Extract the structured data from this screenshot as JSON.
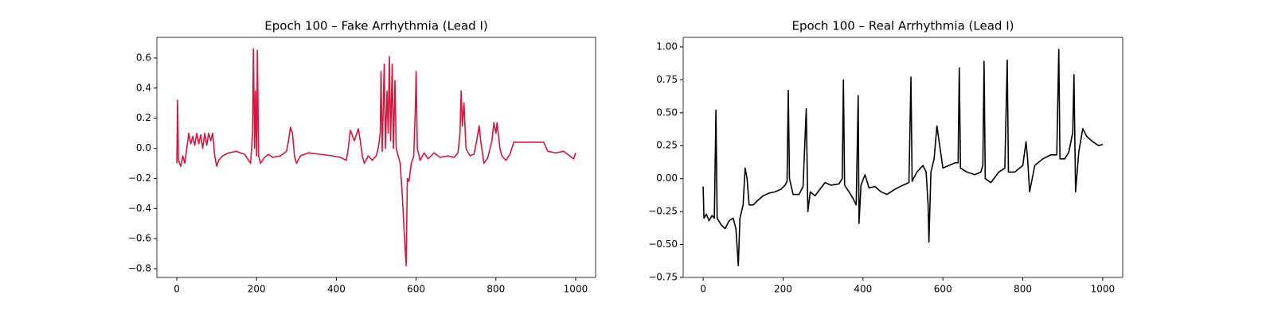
{
  "chart_data": [
    {
      "type": "line",
      "title": "Epoch 100 – Fake Arrhythmia (Lead I)",
      "color": "#dc143c",
      "x": [
        0,
        2,
        4,
        10,
        15,
        20,
        25,
        30,
        35,
        40,
        45,
        50,
        55,
        60,
        65,
        70,
        75,
        80,
        85,
        90,
        95,
        100,
        105,
        115,
        130,
        150,
        170,
        180,
        185,
        190,
        192,
        195,
        197,
        200,
        202,
        205,
        210,
        220,
        230,
        240,
        260,
        275,
        280,
        285,
        290,
        295,
        300,
        310,
        330,
        360,
        390,
        410,
        425,
        430,
        435,
        445,
        455,
        460,
        465,
        470,
        480,
        490,
        500,
        505,
        510,
        512,
        515,
        520,
        523,
        527,
        530,
        533,
        536,
        540,
        543,
        547,
        550,
        555,
        560,
        565,
        570,
        575,
        578,
        582,
        588,
        594,
        598,
        600,
        603,
        610,
        620,
        630,
        645,
        660,
        680,
        695,
        705,
        710,
        713,
        716,
        720,
        725,
        735,
        745,
        752,
        758,
        762,
        770,
        780,
        790,
        795,
        800,
        803,
        810,
        815,
        825,
        835,
        845,
        870,
        900,
        920,
        930,
        950,
        970,
        985,
        995,
        1000
      ],
      "values": [
        -0.1,
        0.32,
        -0.08,
        -0.12,
        -0.05,
        -0.1,
        0.0,
        0.1,
        0.03,
        0.08,
        0.02,
        0.1,
        0.03,
        0.09,
        0.0,
        0.1,
        0.02,
        0.1,
        0.05,
        0.1,
        -0.05,
        -0.12,
        -0.08,
        -0.05,
        -0.03,
        -0.02,
        -0.04,
        -0.08,
        -0.1,
        0.1,
        0.66,
        0.0,
        0.38,
        -0.05,
        0.65,
        -0.05,
        -0.1,
        -0.06,
        -0.04,
        -0.06,
        -0.05,
        -0.02,
        0.05,
        0.14,
        0.1,
        -0.05,
        -0.1,
        -0.05,
        -0.03,
        -0.04,
        -0.05,
        -0.06,
        -0.08,
        0.0,
        0.12,
        0.05,
        0.13,
        0.05,
        -0.05,
        -0.1,
        -0.05,
        -0.08,
        -0.05,
        0.0,
        0.1,
        0.51,
        -0.02,
        0.56,
        0.0,
        0.38,
        0.1,
        0.61,
        0.05,
        0.56,
        0.0,
        0.45,
        0.0,
        -0.05,
        -0.1,
        -0.3,
        -0.55,
        -0.78,
        -0.2,
        -0.22,
        -0.1,
        -0.05,
        0.26,
        0.51,
        0.0,
        -0.08,
        -0.03,
        -0.07,
        -0.03,
        -0.06,
        -0.05,
        -0.06,
        -0.03,
        0.1,
        0.38,
        0.15,
        0.3,
        0.0,
        -0.05,
        -0.04,
        0.05,
        0.15,
        0.05,
        -0.1,
        -0.06,
        0.05,
        0.17,
        0.1,
        0.17,
        0.0,
        -0.05,
        -0.08,
        -0.04,
        0.04,
        0.04,
        0.04,
        0.04,
        -0.02,
        -0.03,
        -0.02,
        -0.05,
        -0.07,
        -0.03
      ],
      "xlim": [
        -50,
        1050
      ],
      "xticks": [
        0,
        200,
        400,
        600,
        800,
        1000
      ],
      "ylim": [
        -0.858,
        0.737
      ],
      "yticks": [
        {
          "value": -0.8,
          "label": "−0.8"
        },
        {
          "value": -0.6,
          "label": "−0.6"
        },
        {
          "value": -0.4,
          "label": "−0.4"
        },
        {
          "value": -0.2,
          "label": "−0.2"
        },
        {
          "value": 0,
          "label": "0.0"
        },
        0.2,
        0.4,
        0.6
      ]
    },
    {
      "type": "line",
      "title": "Epoch 100 – Real Arrhythmia (Lead I)",
      "color": "#000000",
      "x": [
        0,
        2,
        8,
        15,
        22,
        28,
        32,
        35,
        45,
        55,
        65,
        75,
        82,
        88,
        92,
        100,
        105,
        110,
        115,
        125,
        135,
        150,
        165,
        180,
        195,
        205,
        210,
        213,
        216,
        225,
        240,
        250,
        258,
        262,
        268,
        280,
        295,
        305,
        320,
        340,
        348,
        351,
        354,
        365,
        375,
        383,
        388,
        390,
        395,
        405,
        415,
        430,
        445,
        460,
        480,
        500,
        515,
        520,
        523,
        535,
        550,
        558,
        563,
        565,
        570,
        578,
        585,
        592,
        600,
        615,
        630,
        638,
        641,
        644,
        660,
        680,
        695,
        700,
        703,
        706,
        720,
        740,
        755,
        761,
        764,
        780,
        800,
        808,
        812,
        817,
        830,
        850,
        870,
        885,
        890,
        893,
        905,
        915,
        925,
        928,
        932,
        940,
        950,
        960,
        975,
        990,
        1000
      ],
      "values": [
        -0.06,
        -0.3,
        -0.27,
        -0.32,
        -0.28,
        -0.3,
        0.52,
        -0.3,
        -0.35,
        -0.38,
        -0.32,
        -0.3,
        -0.38,
        -0.66,
        -0.3,
        -0.2,
        0.08,
        0.0,
        -0.2,
        -0.2,
        -0.17,
        -0.13,
        -0.11,
        -0.1,
        -0.08,
        -0.05,
        -0.02,
        0.67,
        0.0,
        -0.12,
        -0.12,
        -0.06,
        0.53,
        -0.25,
        -0.1,
        -0.13,
        -0.07,
        -0.03,
        -0.05,
        -0.04,
        0.0,
        0.75,
        -0.05,
        -0.1,
        -0.15,
        -0.2,
        0.63,
        -0.34,
        -0.05,
        0.03,
        -0.07,
        -0.06,
        -0.1,
        -0.12,
        -0.08,
        -0.05,
        -0.03,
        0.77,
        -0.02,
        0.05,
        0.1,
        0.05,
        -0.2,
        -0.48,
        0.05,
        0.15,
        0.4,
        0.25,
        0.08,
        0.1,
        0.12,
        0.12,
        0.84,
        0.08,
        0.05,
        0.03,
        0.05,
        0.1,
        0.89,
        0.0,
        -0.03,
        0.05,
        0.08,
        0.9,
        0.05,
        0.05,
        0.1,
        0.28,
        0.15,
        -0.1,
        0.1,
        0.15,
        0.18,
        0.18,
        0.98,
        0.15,
        0.15,
        0.2,
        0.35,
        0.79,
        -0.1,
        0.2,
        0.38,
        0.32,
        0.28,
        0.25,
        0.26
      ],
      "xlim": [
        -50,
        1050
      ],
      "xticks": [
        0,
        200,
        400,
        600,
        800,
        1000
      ],
      "ylim": [
        -0.75,
        1.072
      ],
      "yticks": [
        {
          "value": -0.75,
          "label": "−0.75"
        },
        {
          "value": -0.5,
          "label": "−0.50"
        },
        {
          "value": -0.25,
          "label": "−0.25"
        },
        {
          "value": 0,
          "label": "0.00"
        },
        0.25,
        {
          "value": 0.5,
          "label": "0.50"
        },
        0.75,
        {
          "value": 1,
          "label": "1.00"
        }
      ]
    }
  ]
}
